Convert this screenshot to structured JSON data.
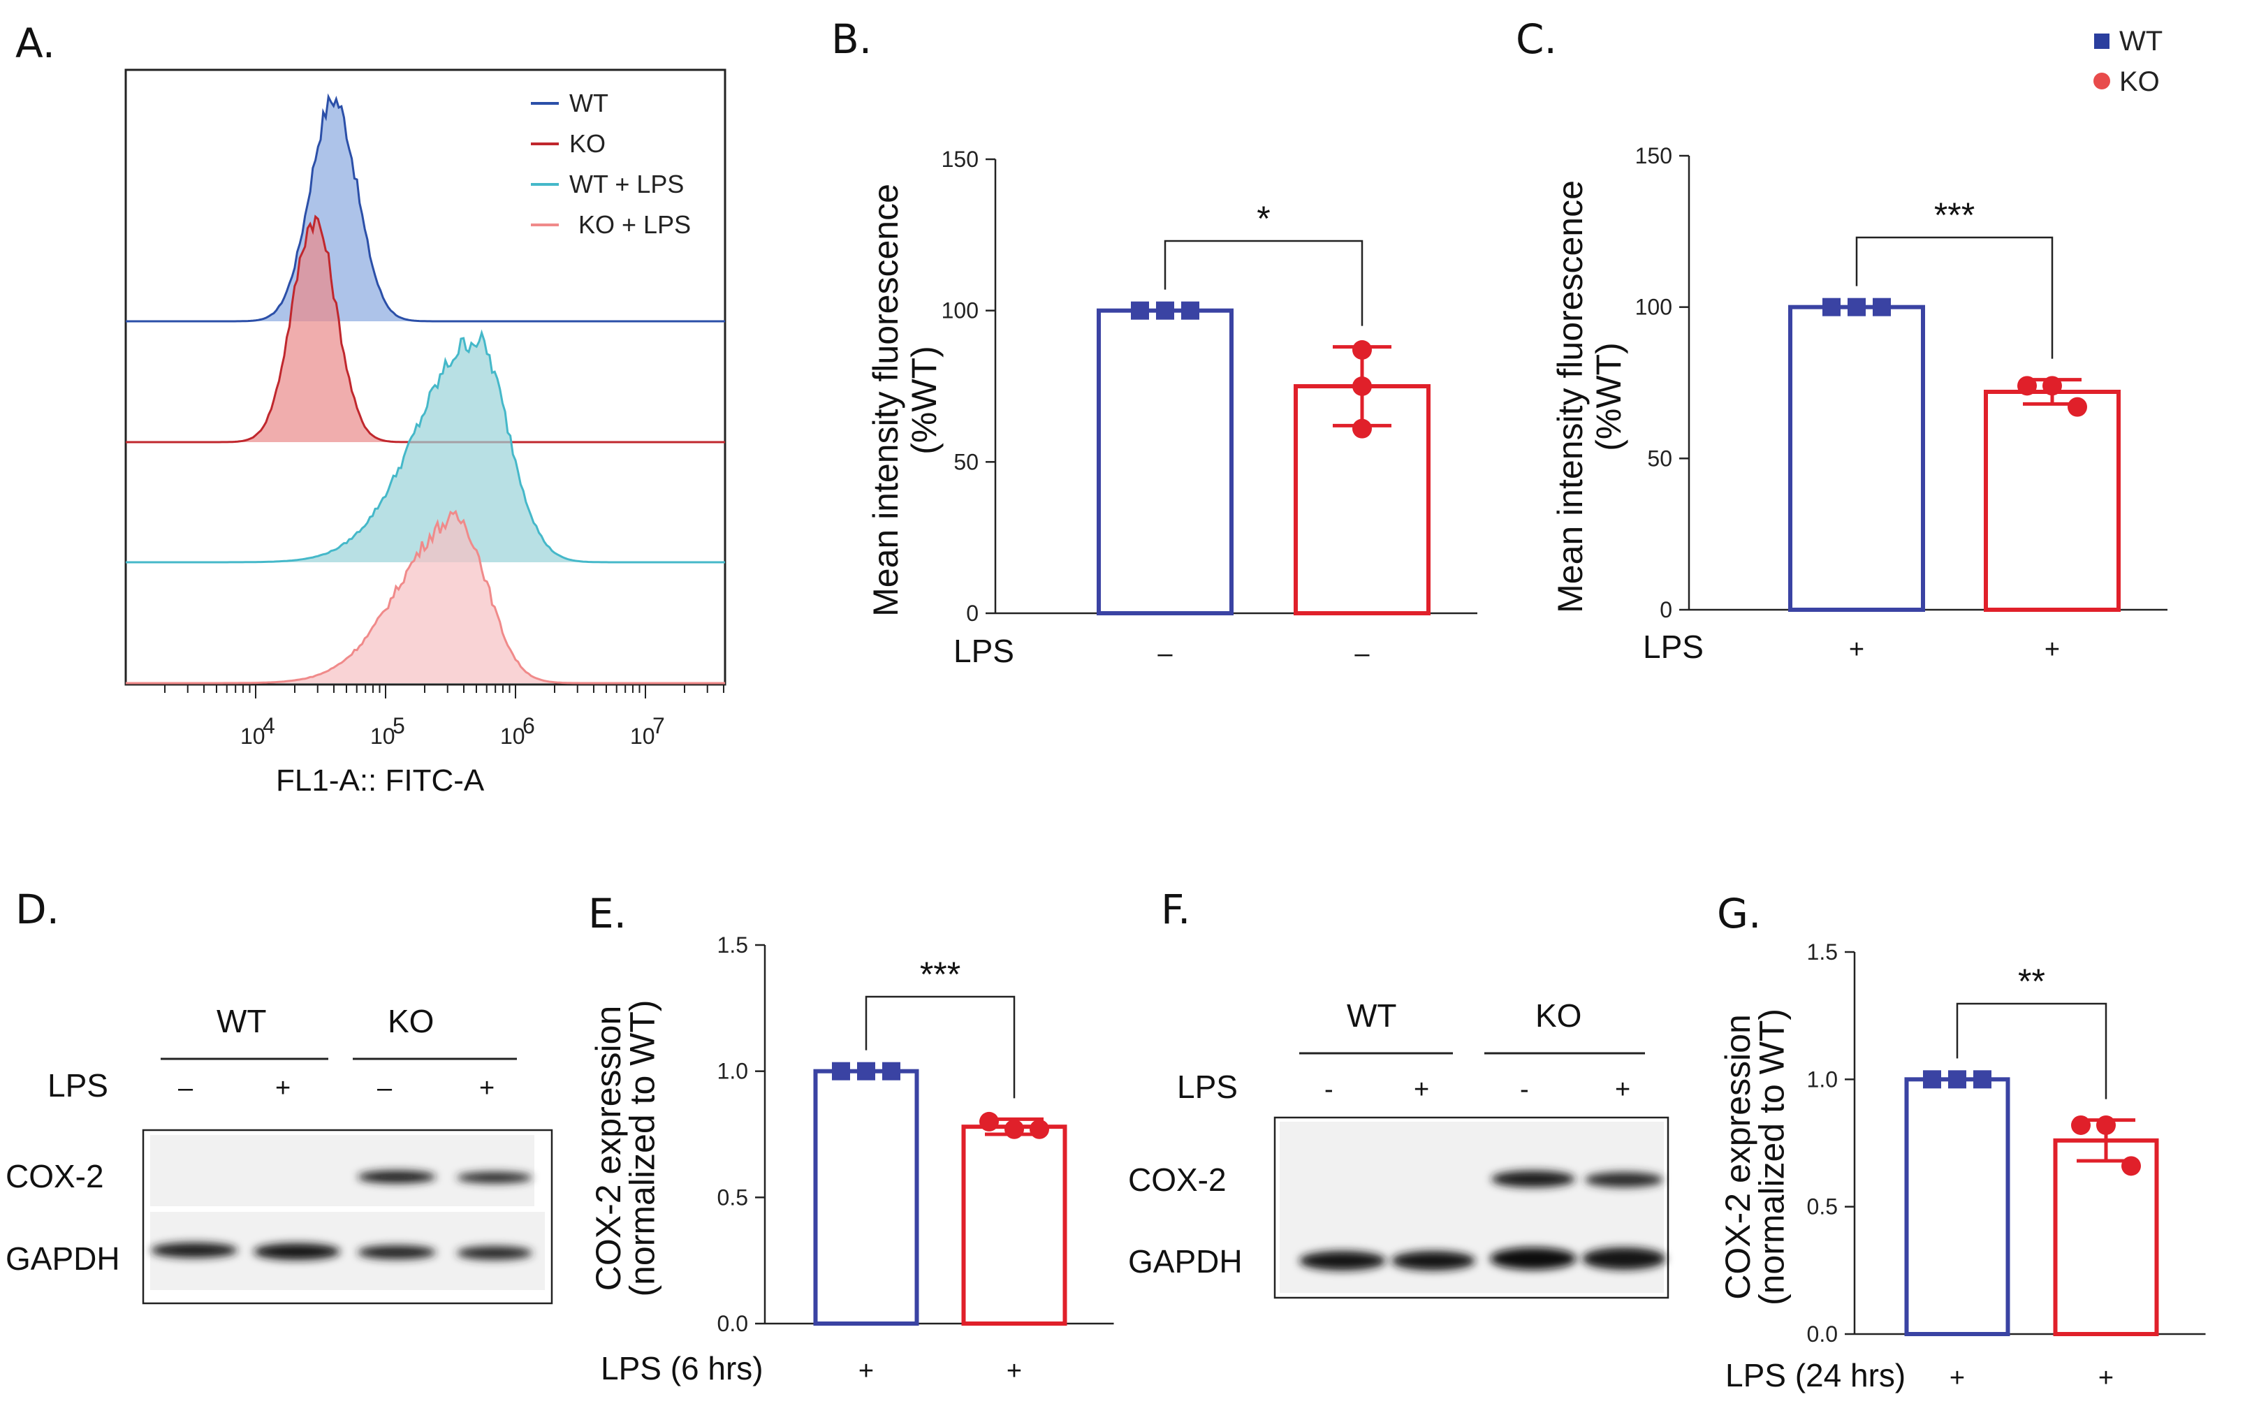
{
  "panels": {
    "A": "A.",
    "B": "B.",
    "C": "C.",
    "D": "D.",
    "E": "E.",
    "F": "F.",
    "G": "G."
  },
  "global_legend": {
    "wt": {
      "label": "WT",
      "color": "#2a3e9e"
    },
    "ko": {
      "label": "KO",
      "color": "#e84b4b"
    }
  },
  "chart_data": [
    {
      "id": "A",
      "type": "area",
      "title": "",
      "xlabel": "FL1-A:: FITC-A",
      "x_ticks": [
        "10",
        "10",
        "10",
        "10"
      ],
      "x_tick_exponents": [
        "4",
        "5",
        "6",
        "7"
      ],
      "x_scale": "log",
      "series": [
        {
          "name": "WT",
          "line_color": "#2b4fa8",
          "fill_color": "#8aaadf",
          "peak_log10": 4.6
        },
        {
          "name": "KO",
          "line_color": "#c0272d",
          "fill_color": "#e98a8a",
          "peak_log10": 4.45
        },
        {
          "name": "WT + LPS",
          "line_color": "#45b8c9",
          "fill_color": "#9ad3d8",
          "peak_log10": 5.7
        },
        {
          "name": "KO + LPS",
          "line_color": "#f08a8a",
          "fill_color": "#f6c0c3",
          "peak_log10": 5.55
        }
      ]
    },
    {
      "id": "B",
      "type": "bar",
      "categories": [
        "WT",
        "KO"
      ],
      "x_treatment_label": "LPS",
      "x_treatments": [
        "–",
        "–"
      ],
      "values": [
        100,
        75
      ],
      "error": [
        0,
        13
      ],
      "points": [
        [
          100,
          100,
          100
        ],
        [
          87,
          75,
          61
        ]
      ],
      "ylabel": [
        "Mean intensity fluorescence",
        "(%WT)"
      ],
      "ylim": [
        0,
        150
      ],
      "yticks": [
        "0",
        "50",
        "100",
        "150"
      ],
      "significance": "*"
    },
    {
      "id": "C",
      "type": "bar",
      "categories": [
        "WT",
        "KO"
      ],
      "x_treatment_label": "LPS",
      "x_treatments": [
        "+",
        "+"
      ],
      "values": [
        100,
        72
      ],
      "error": [
        0,
        4
      ],
      "points": [
        [
          100,
          100,
          100
        ],
        [
          74,
          74,
          67
        ]
      ],
      "ylabel": [
        "Mean intensity fluorescence",
        "(%WT)"
      ],
      "ylim": [
        0,
        150
      ],
      "yticks": [
        "0",
        "50",
        "100",
        "150"
      ],
      "significance": "***"
    },
    {
      "id": "E",
      "type": "bar",
      "categories": [
        "WT",
        "KO"
      ],
      "x_treatment_label": "LPS (6 hrs)",
      "x_treatments": [
        "+",
        "+"
      ],
      "values": [
        1.0,
        0.78
      ],
      "error": [
        0,
        0.03
      ],
      "points": [
        [
          1.0,
          1.0,
          1.0
        ],
        [
          0.8,
          0.77,
          0.77
        ]
      ],
      "ylabel": [
        "COX-2 expression",
        "(normalized to WT)"
      ],
      "ylim": [
        0,
        1.5
      ],
      "yticks": [
        "0.0",
        "0.5",
        "1.0",
        "1.5"
      ],
      "significance": "***"
    },
    {
      "id": "G",
      "type": "bar",
      "categories": [
        "WT",
        "KO"
      ],
      "x_treatment_label": "LPS (24 hrs)",
      "x_treatments": [
        "+",
        "+"
      ],
      "values": [
        1.0,
        0.76
      ],
      "error": [
        0,
        0.08
      ],
      "points": [
        [
          1.0,
          1.0,
          1.0
        ],
        [
          0.82,
          0.82,
          0.66
        ]
      ],
      "ylabel": [
        "COX-2 expression",
        "(normalized to WT)"
      ],
      "ylim": [
        0,
        1.5
      ],
      "yticks": [
        "0.0",
        "0.5",
        "1.0",
        "1.5"
      ],
      "significance": "**"
    }
  ],
  "blots": {
    "D": {
      "groups": [
        "WT",
        "KO"
      ],
      "treatment_label": "LPS",
      "lanes": [
        "–",
        "+",
        "–",
        "+"
      ],
      "proteins": [
        "COX-2",
        "GAPDH"
      ]
    },
    "F": {
      "groups": [
        "WT",
        "KO"
      ],
      "treatment_label": "LPS",
      "lanes": [
        "-",
        "+",
        "-",
        "+"
      ],
      "proteins": [
        "COX-2",
        "GAPDH"
      ]
    }
  },
  "colors": {
    "wt_bar": "#3a43a3",
    "ko_bar": "#e0202a"
  }
}
